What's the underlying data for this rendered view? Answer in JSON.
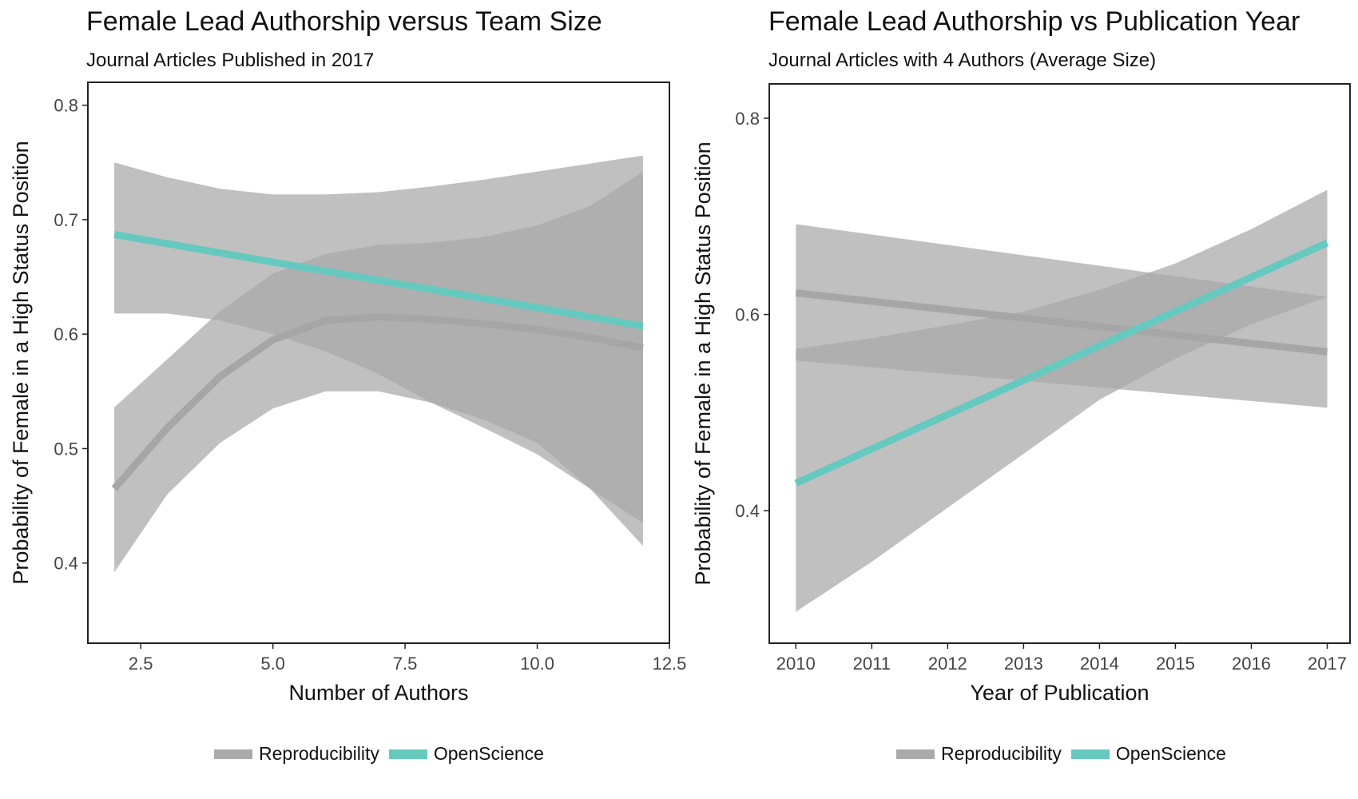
{
  "colors": {
    "reproducibility_line": "#a6a6a6",
    "openscience_line": "#66c9c0",
    "ribbon": "#a9a8a8",
    "axis": "#222222"
  },
  "legend": {
    "items": [
      {
        "label": "Reproducibility",
        "color": "#aaaaaa"
      },
      {
        "label": "OpenScience",
        "color": "#66c9c0"
      }
    ]
  },
  "chart_data": [
    {
      "type": "line",
      "title": "Female Lead Authorship versus Team Size",
      "subtitle": "Journal Articles Published in 2017",
      "xlabel": "Number of Authors",
      "ylabel": "Probability of Female in a High Status Position",
      "xlim": [
        1.5,
        12.5
      ],
      "ylim": [
        0.33,
        0.82
      ],
      "xticks": [
        2.5,
        5.0,
        7.5,
        10.0,
        12.5
      ],
      "xtick_labels": [
        "2.5",
        "5.0",
        "7.5",
        "10.0",
        "12.5"
      ],
      "yticks": [
        0.4,
        0.5,
        0.6,
        0.7,
        0.8
      ],
      "ytick_labels": [
        "0.4",
        "0.5",
        "0.6",
        "0.7",
        "0.8"
      ],
      "grid": false,
      "legend_position": "bottom",
      "series": [
        {
          "name": "Reproducibility",
          "x": [
            2,
            3,
            4,
            5,
            6,
            7,
            8,
            9,
            10,
            11,
            12
          ],
          "y": [
            0.465,
            0.518,
            0.563,
            0.595,
            0.612,
            0.615,
            0.613,
            0.609,
            0.604,
            0.597,
            0.588
          ],
          "lower": [
            0.392,
            0.46,
            0.505,
            0.535,
            0.55,
            0.55,
            0.54,
            0.525,
            0.505,
            0.465,
            0.415
          ],
          "upper": [
            0.536,
            0.578,
            0.62,
            0.653,
            0.67,
            0.678,
            0.68,
            0.685,
            0.695,
            0.712,
            0.742
          ]
        },
        {
          "name": "OpenScience",
          "x": [
            2,
            3,
            4,
            5,
            6,
            7,
            8,
            9,
            10,
            11,
            12
          ],
          "y": [
            0.687,
            0.679,
            0.671,
            0.663,
            0.655,
            0.647,
            0.639,
            0.631,
            0.623,
            0.615,
            0.607
          ],
          "lower": [
            0.618,
            0.618,
            0.612,
            0.6,
            0.585,
            0.565,
            0.54,
            0.518,
            0.495,
            0.465,
            0.435
          ],
          "upper": [
            0.75,
            0.737,
            0.727,
            0.722,
            0.722,
            0.724,
            0.729,
            0.735,
            0.742,
            0.749,
            0.756
          ]
        }
      ]
    },
    {
      "type": "line",
      "title": "Female Lead Authorship vs Publication Year",
      "subtitle": "Journal Articles with 4 Authors (Average Size)",
      "xlabel": "Year of Publication",
      "ylabel": "Probability of Female in a High Status Position",
      "xlim": [
        2009.65,
        2017.3
      ],
      "ylim": [
        0.265,
        0.835
      ],
      "xticks": [
        2010,
        2011,
        2012,
        2013,
        2014,
        2015,
        2016,
        2017
      ],
      "xtick_labels": [
        "2010",
        "2011",
        "2012",
        "2013",
        "2014",
        "2015",
        "2016",
        "2017"
      ],
      "yticks": [
        0.4,
        0.6,
        0.8
      ],
      "ytick_labels": [
        "0.4",
        "0.6",
        "0.8"
      ],
      "grid": false,
      "legend_position": "bottom",
      "series": [
        {
          "name": "Reproducibility",
          "x": [
            2010,
            2017
          ],
          "y": [
            0.622,
            0.562
          ],
          "lower": [
            0.553,
            0.505
          ],
          "upper": [
            0.692,
            0.618
          ]
        },
        {
          "name": "OpenScience",
          "x": [
            2010,
            2011,
            2012,
            2013,
            2014,
            2015,
            2016,
            2017
          ],
          "y": [
            0.428,
            0.463,
            0.498,
            0.533,
            0.568,
            0.603,
            0.638,
            0.673
          ],
          "lower": [
            0.297,
            0.348,
            0.403,
            0.458,
            0.513,
            0.555,
            0.59,
            0.618
          ],
          "upper": [
            0.565,
            0.576,
            0.589,
            0.603,
            0.625,
            0.652,
            0.687,
            0.727
          ]
        }
      ]
    }
  ]
}
